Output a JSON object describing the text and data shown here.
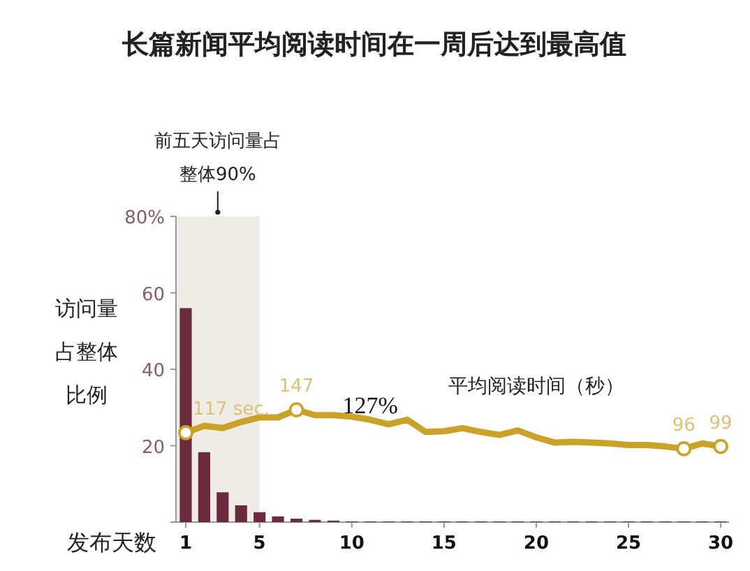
{
  "chart_data": {
    "type": "bar",
    "title": "长篇新闻平均阅读时间在一周后达到最高值",
    "xlabel": "发布天数",
    "ylabel": "访问量占整体比例",
    "x": [
      1,
      2,
      3,
      4,
      5,
      6,
      7,
      8,
      9,
      10,
      11,
      12,
      13,
      14,
      15,
      16,
      17,
      18,
      19,
      20,
      21,
      22,
      23,
      24,
      25,
      26,
      27,
      28,
      29,
      30
    ],
    "xlim": [
      0.47,
      30.45
    ],
    "xticks": [
      1,
      5,
      10,
      15,
      20,
      25,
      30
    ],
    "ylim": [
      0,
      80
    ],
    "yticks": [
      {
        "value": 0,
        "label": null
      },
      20,
      40,
      60,
      {
        "value": 80,
        "label": "80%"
      }
    ],
    "y2lim": [
      0,
      400
    ],
    "series": [
      {
        "color": "#6b2a3e",
        "values": [
          56,
          18.3,
          7.8,
          4.4,
          2.6,
          1.5,
          0.9,
          0.6,
          0.4,
          0.2,
          0.2,
          0.2,
          0.2,
          0.2,
          0.2,
          0.2,
          0.2,
          0.2,
          0.2,
          0.2,
          0.2,
          0.2,
          0.2,
          0.2,
          0.2,
          0.2,
          0.2,
          0.2,
          0.2,
          0.2
        ]
      },
      {
        "type": "line",
        "axis": "y2",
        "name": "平均阅读时间（秒）",
        "color": "#c9a227",
        "values": [
          117,
          126,
          123,
          131,
          137,
          137,
          147,
          140,
          140,
          138,
          134,
          128,
          134,
          118,
          119,
          123,
          118,
          114,
          120,
          111,
          104,
          105,
          104,
          103,
          101,
          101,
          99,
          96,
          103,
          99
        ],
        "value_labels": [
          "117 sec.",
          null,
          null,
          null,
          null,
          null,
          "147",
          null,
          null,
          null,
          null,
          null,
          null,
          null,
          null,
          null,
          null,
          null,
          null,
          null,
          null,
          null,
          null,
          null,
          null,
          null,
          null,
          "96",
          null,
          "99"
        ]
      }
    ],
    "bands": [
      {
        "axis": "x",
        "from": 0.47,
        "to": 5,
        "label": "前五天访问量占整体90%",
        "color": "#eeece4"
      }
    ],
    "annotations": [
      "127%"
    ],
    "grid": false
  }
}
